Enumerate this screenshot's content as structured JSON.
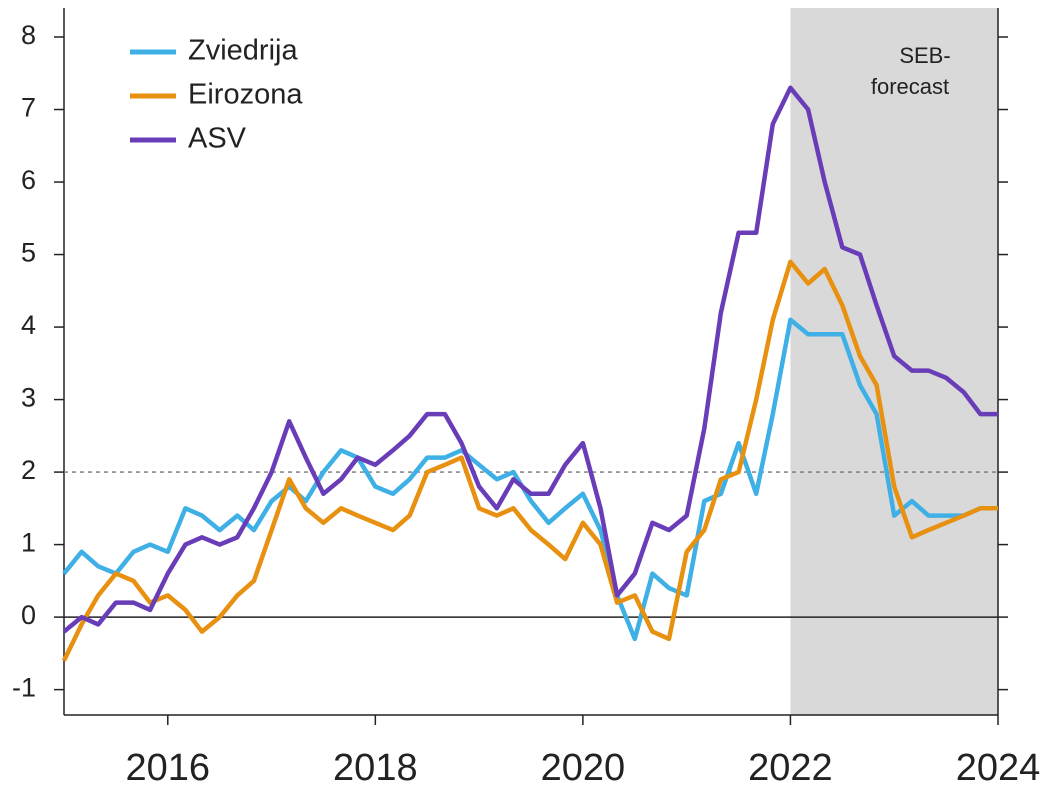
{
  "chart_data": {
    "type": "line",
    "x": [
      2015,
      2015.17,
      2015.33,
      2015.5,
      2015.67,
      2015.83,
      2016,
      2016.17,
      2016.33,
      2016.5,
      2016.67,
      2016.83,
      2017,
      2017.17,
      2017.33,
      2017.5,
      2017.67,
      2017.83,
      2018,
      2018.17,
      2018.33,
      2018.5,
      2018.67,
      2018.83,
      2019,
      2019.17,
      2019.33,
      2019.5,
      2019.67,
      2019.83,
      2020,
      2020.17,
      2020.33,
      2020.5,
      2020.67,
      2020.83,
      2021,
      2021.17,
      2021.33,
      2021.5,
      2021.67,
      2021.83,
      2022,
      2022.17,
      2022.33,
      2022.5,
      2022.67,
      2022.83,
      2023,
      2023.17,
      2023.33,
      2023.5,
      2023.67,
      2023.83,
      2024
    ],
    "series": [
      {
        "name": "Zviedrija",
        "color": "#3fb0e6",
        "values": [
          0.6,
          0.9,
          0.7,
          0.6,
          0.9,
          1.0,
          0.9,
          1.5,
          1.4,
          1.2,
          1.4,
          1.2,
          1.6,
          1.8,
          1.6,
          2.0,
          2.3,
          2.2,
          1.8,
          1.7,
          1.9,
          2.2,
          2.2,
          2.3,
          2.1,
          1.9,
          2.0,
          1.6,
          1.3,
          1.5,
          1.7,
          1.2,
          0.3,
          -0.3,
          0.6,
          0.4,
          0.3,
          1.6,
          1.7,
          2.4,
          1.7,
          2.8,
          4.1,
          3.9,
          3.9,
          3.9,
          3.2,
          2.8,
          1.4,
          1.6,
          1.4,
          1.4,
          1.4,
          1.5,
          1.5
        ]
      },
      {
        "name": "Eirozona",
        "color": "#e8900f",
        "values": [
          -0.6,
          -0.1,
          0.3,
          0.6,
          0.5,
          0.2,
          0.3,
          0.1,
          -0.2,
          0.0,
          0.3,
          0.5,
          1.2,
          1.9,
          1.5,
          1.3,
          1.5,
          1.4,
          1.3,
          1.2,
          1.4,
          2.0,
          2.1,
          2.2,
          1.5,
          1.4,
          1.5,
          1.2,
          1.0,
          0.8,
          1.3,
          1.0,
          0.2,
          0.3,
          -0.2,
          -0.3,
          0.9,
          1.2,
          1.9,
          2.0,
          3.0,
          4.1,
          4.9,
          4.6,
          4.8,
          4.3,
          3.6,
          3.2,
          1.8,
          1.1,
          1.2,
          1.3,
          1.4,
          1.5,
          1.5
        ]
      },
      {
        "name": "ASV",
        "color": "#6a3db8",
        "values": [
          -0.2,
          0.0,
          -0.1,
          0.2,
          0.2,
          0.1,
          0.6,
          1.0,
          1.1,
          1.0,
          1.1,
          1.5,
          2.0,
          2.7,
          2.2,
          1.7,
          1.9,
          2.2,
          2.1,
          2.3,
          2.5,
          2.8,
          2.8,
          2.4,
          1.8,
          1.5,
          1.9,
          1.7,
          1.7,
          2.1,
          2.4,
          1.5,
          0.3,
          0.6,
          1.3,
          1.2,
          1.4,
          2.6,
          4.2,
          5.3,
          5.3,
          6.8,
          7.3,
          7.0,
          6.0,
          5.1,
          5.0,
          4.3,
          3.6,
          3.4,
          3.4,
          3.3,
          3.1,
          2.8,
          2.8
        ]
      }
    ],
    "xlim": [
      2015,
      2024
    ],
    "xticks": [
      2016,
      2018,
      2020,
      2022,
      2024
    ],
    "ylim": [
      -1.35,
      8.4
    ],
    "yticks": [
      -1,
      0,
      1,
      2,
      3,
      4,
      5,
      6,
      7,
      8
    ],
    "reference_line": 2,
    "shaded_region": [
      2022,
      2024
    ],
    "annotation": [
      "SEB-",
      "forecast"
    ],
    "legend": "top-left"
  }
}
